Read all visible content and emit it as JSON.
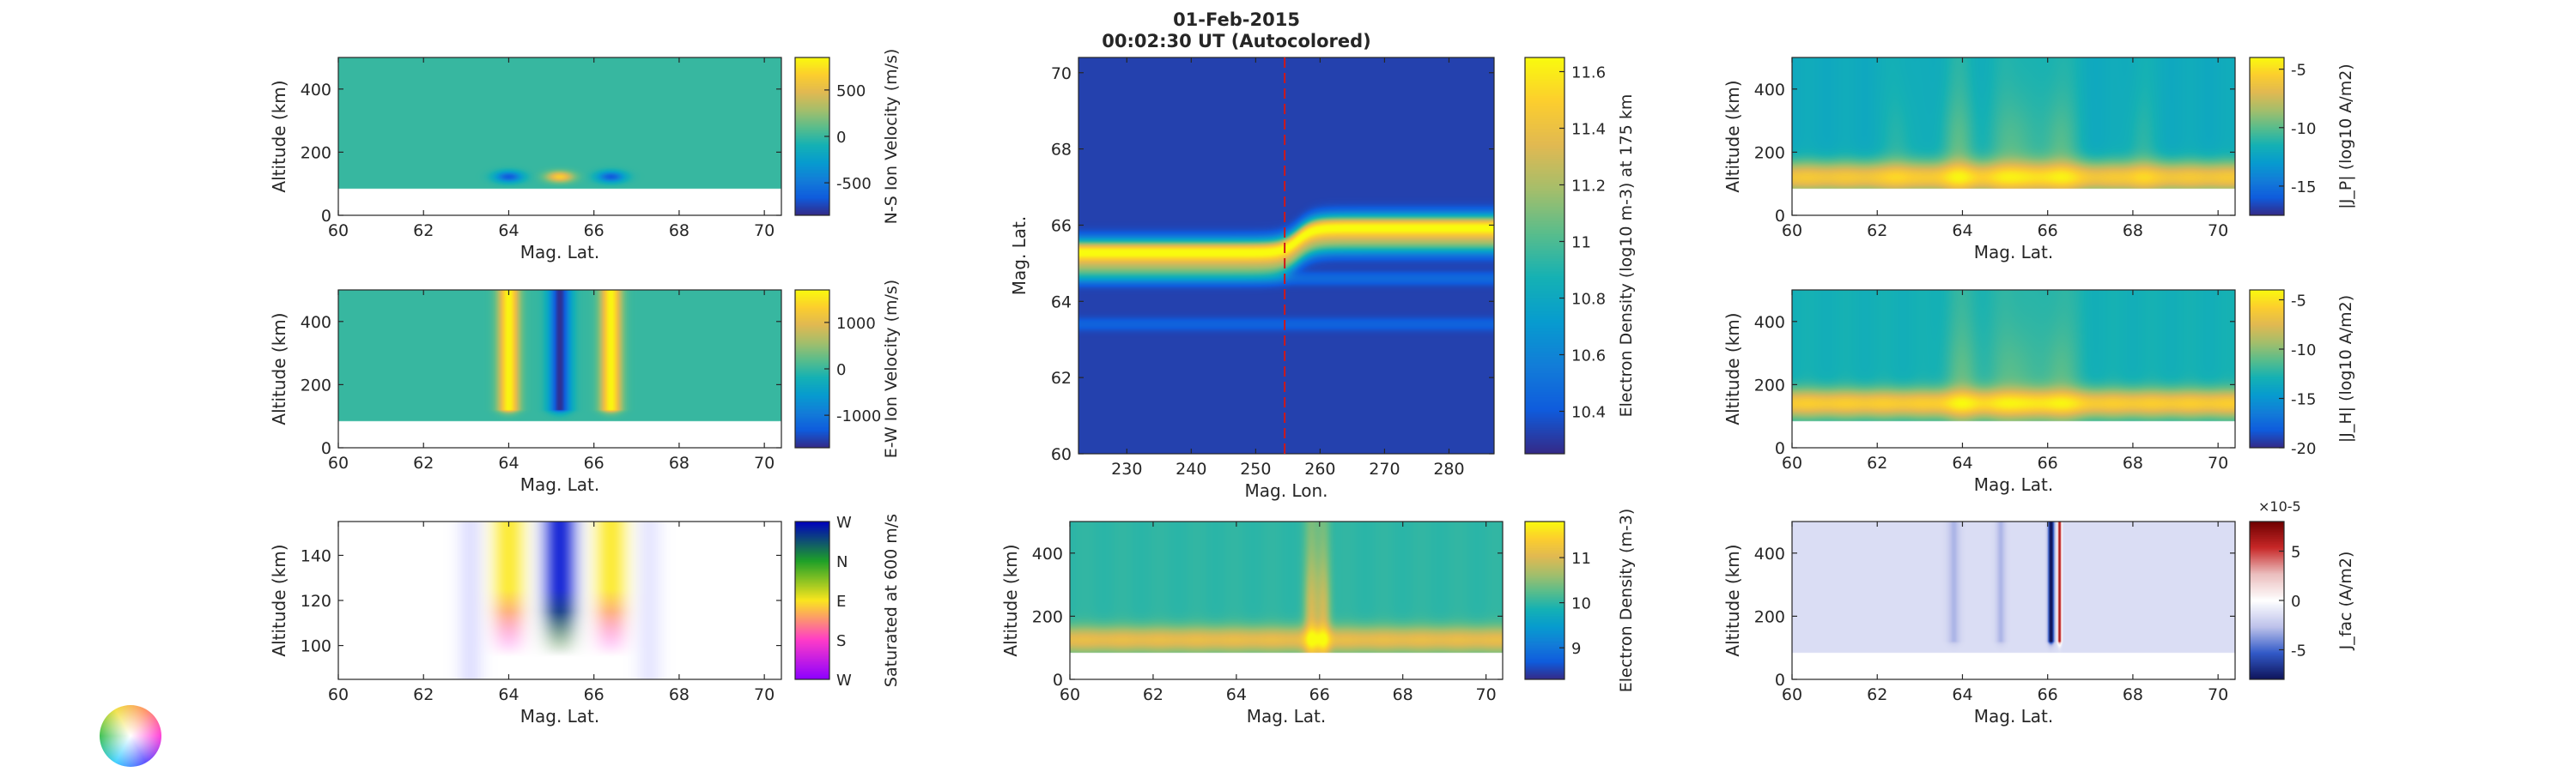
{
  "figure": {
    "title_line1": "01-Feb-2015",
    "title_line2": "00:02:30 UT (Autocolored)"
  },
  "chart_data": [
    {
      "id": "ns-velocity",
      "type": "heatmap",
      "xlabel": "Mag. Lat.",
      "ylabel": "Altitude (km)",
      "xlim": [
        60,
        70.4
      ],
      "ylim": [
        0,
        500
      ],
      "xticks": [
        60,
        62,
        64,
        66,
        68,
        70
      ],
      "yticks": [
        0,
        200,
        400
      ],
      "data_floor": 85,
      "colorbar": {
        "label": "N-S Ion Velocity (m/s)",
        "lim": [
          -850,
          850
        ],
        "ticks": [
          -500,
          0,
          500
        ],
        "map": "parula"
      },
      "background": 0,
      "features": [
        {
          "kind": "blob",
          "x": 64.0,
          "y": 122,
          "sx": 0.22,
          "sy": 12,
          "amp": -650
        },
        {
          "kind": "blob",
          "x": 65.2,
          "y": 122,
          "sx": 0.22,
          "sy": 12,
          "amp": 650
        },
        {
          "kind": "blob",
          "x": 66.4,
          "y": 122,
          "sx": 0.22,
          "sy": 12,
          "amp": -650
        }
      ]
    },
    {
      "id": "ew-velocity",
      "type": "heatmap",
      "xlabel": "Mag. Lat.",
      "ylabel": "Altitude (km)",
      "xlim": [
        60,
        70.4
      ],
      "ylim": [
        0,
        500
      ],
      "xticks": [
        60,
        62,
        64,
        66,
        68,
        70
      ],
      "yticks": [
        0,
        200,
        400
      ],
      "data_floor": 85,
      "colorbar": {
        "label": "E-W Ion Velocity (m/s)",
        "lim": [
          -1700,
          1700
        ],
        "ticks": [
          -1000,
          0,
          1000
        ],
        "map": "parula"
      },
      "background": 0,
      "features": [
        {
          "kind": "band",
          "x": 64.0,
          "sx": 0.17,
          "ymin": 120,
          "amp": 1650
        },
        {
          "kind": "band",
          "x": 65.2,
          "sx": 0.17,
          "ymin": 120,
          "amp": -1650
        },
        {
          "kind": "band",
          "x": 66.4,
          "sx": 0.17,
          "ymin": 120,
          "amp": 1650
        }
      ]
    },
    {
      "id": "flow-direction",
      "type": "heatmap",
      "xlabel": "Mag. Lat.",
      "ylabel": "Altitude (km)",
      "xlim": [
        60,
        70.4
      ],
      "ylim": [
        85,
        155
      ],
      "xticks": [
        60,
        62,
        64,
        66,
        68,
        70
      ],
      "yticks": [
        100,
        120,
        140
      ],
      "colorbar": {
        "label": "Saturated at 600 m/s",
        "map": "direction",
        "tick_labels": [
          "W",
          "N",
          "E",
          "S",
          "W"
        ]
      },
      "features": [
        {
          "kind": "flow",
          "x": 64.0,
          "sx": 0.27,
          "dir": "E",
          "fade_rgb": [
            255,
            100,
            230
          ]
        },
        {
          "kind": "flow",
          "x": 65.2,
          "sx": 0.27,
          "dir": "W",
          "fade_rgb": [
            40,
            110,
            40
          ]
        },
        {
          "kind": "flow",
          "x": 66.4,
          "sx": 0.27,
          "dir": "E",
          "fade_rgb": [
            255,
            100,
            230
          ]
        },
        {
          "kind": "faint",
          "x": 63.1,
          "sx": 0.22,
          "rgb": [
            140,
            140,
            255
          ],
          "alpha": 0.25
        },
        {
          "kind": "faint",
          "x": 67.3,
          "sx": 0.22,
          "rgb": [
            140,
            140,
            255
          ],
          "alpha": 0.2
        }
      ]
    },
    {
      "id": "density-map",
      "type": "heatmap",
      "xlabel": "Mag. Lon.",
      "ylabel": "Mag. Lat.",
      "xlim": [
        222.5,
        287
      ],
      "ylim": [
        60,
        70.4
      ],
      "xticks": [
        230,
        240,
        250,
        260,
        270,
        280
      ],
      "yticks": [
        60,
        62,
        64,
        66,
        68,
        70
      ],
      "marker_lon": 254.5,
      "colorbar": {
        "label": "Electron Density (log10 m-3) at 175 km",
        "lim": [
          10.25,
          11.65
        ],
        "ticks": [
          10.4,
          10.6,
          10.8,
          11.0,
          11.2,
          11.4,
          11.6
        ],
        "tick_labels": [
          "10.4",
          "10.6",
          "10.8",
          "11",
          "11.2",
          "11.4",
          "11.6"
        ],
        "map": "parula"
      },
      "background": 10.32,
      "features": [
        {
          "kind": "arc",
          "lat_west": 65.3,
          "lat_east": 65.95,
          "sx": 0.22,
          "amp": 1.3
        },
        {
          "kind": "stripe",
          "lat": 64.6,
          "sx": 0.12,
          "amp": 0.15
        },
        {
          "kind": "stripe",
          "lat": 63.4,
          "sx": 0.12,
          "amp": 0.12
        }
      ]
    },
    {
      "id": "density-profile",
      "type": "heatmap",
      "xlabel": "Mag. Lat.",
      "ylabel": "Altitude (km)",
      "xlim": [
        60,
        70.4
      ],
      "ylim": [
        0,
        500
      ],
      "xticks": [
        60,
        62,
        64,
        66,
        68,
        70
      ],
      "yticks": [
        0,
        200,
        400
      ],
      "data_floor": 85,
      "colorbar": {
        "label": "Electron Density (m-3)",
        "lim": [
          8.3,
          11.8
        ],
        "ticks": [
          9,
          10,
          11
        ],
        "map": "parula"
      },
      "background": 10.0,
      "features": [
        {
          "kind": "layer",
          "y": 125,
          "sy": 30,
          "amp": 1.1
        },
        {
          "kind": "column",
          "x": 65.8,
          "sx": 0.12,
          "amp": 0.9
        },
        {
          "kind": "column",
          "x": 66.1,
          "sx": 0.12,
          "amp": 0.9
        }
      ]
    },
    {
      "id": "pedersen",
      "type": "heatmap",
      "xlabel": "Mag. Lat.",
      "ylabel": "Altitude (km)",
      "xlim": [
        60,
        70.4
      ],
      "ylim": [
        0,
        500
      ],
      "xticks": [
        60,
        62,
        64,
        66,
        68,
        70
      ],
      "yticks": [
        0,
        200,
        400
      ],
      "data_floor": 85,
      "colorbar": {
        "label": "|J_P| (log10 A/m2)",
        "lim": [
          -17.5,
          -4
        ],
        "ticks": [
          -15,
          -10,
          -5
        ],
        "map": "parula"
      },
      "background": -12,
      "features": [
        {
          "kind": "layer",
          "y": 120,
          "sy": 35,
          "amp": 6
        },
        {
          "kind": "column",
          "x": 63.9,
          "sx": 0.3,
          "amp": 2
        },
        {
          "kind": "column",
          "x": 65.2,
          "sx": 0.4,
          "amp": 2
        },
        {
          "kind": "column",
          "x": 66.3,
          "sx": 0.3,
          "amp": 2
        },
        {
          "kind": "column",
          "x": 62.5,
          "sx": 0.25,
          "amp": 1
        },
        {
          "kind": "column",
          "x": 68.2,
          "sx": 0.25,
          "amp": 1
        }
      ]
    },
    {
      "id": "hall",
      "type": "heatmap",
      "xlabel": "Mag. Lat.",
      "ylabel": "Altitude (km)",
      "xlim": [
        60,
        70.4
      ],
      "ylim": [
        0,
        500
      ],
      "xticks": [
        60,
        62,
        64,
        66,
        68,
        70
      ],
      "yticks": [
        0,
        200,
        400
      ],
      "data_floor": 85,
      "colorbar": {
        "label": "|J_H| (log10 A/m2)",
        "lim": [
          -20,
          -4
        ],
        "ticks": [
          -20,
          -15,
          -10,
          -5
        ],
        "map": "parula"
      },
      "background": -13,
      "features": [
        {
          "kind": "layer",
          "y": 140,
          "sy": 32,
          "amp": 7
        },
        {
          "kind": "column",
          "x": 64.0,
          "sx": 0.3,
          "amp": 2
        },
        {
          "kind": "column",
          "x": 65.2,
          "sx": 0.4,
          "amp": 2
        },
        {
          "kind": "column",
          "x": 66.3,
          "sx": 0.3,
          "amp": 2
        }
      ]
    },
    {
      "id": "fac",
      "type": "heatmap",
      "xlabel": "Mag. Lat.",
      "ylabel": "Altitude (km)",
      "xlim": [
        60,
        70.4
      ],
      "ylim": [
        0,
        500
      ],
      "xticks": [
        60,
        62,
        64,
        66,
        68,
        70
      ],
      "yticks": [
        0,
        200,
        400
      ],
      "data_floor": 85,
      "colorbar": {
        "label": "J_fac (A/m2)",
        "lim": [
          -8,
          8
        ],
        "ticks": [
          -5,
          0,
          5
        ],
        "exponent": "×10-5",
        "map": "bluered"
      },
      "background": -1.5,
      "features": [
        {
          "kind": "band",
          "x": 63.8,
          "sx": 0.1,
          "ymin": 120,
          "amp": -1.5
        },
        {
          "kind": "band",
          "x": 64.9,
          "sx": 0.08,
          "ymin": 120,
          "amp": -1.5
        },
        {
          "kind": "band",
          "x": 66.08,
          "sx": 0.05,
          "ymin": 120,
          "amp": -7
        },
        {
          "kind": "band",
          "x": 66.28,
          "sx": 0.03,
          "ymin": 120,
          "amp": 8
        }
      ]
    }
  ]
}
